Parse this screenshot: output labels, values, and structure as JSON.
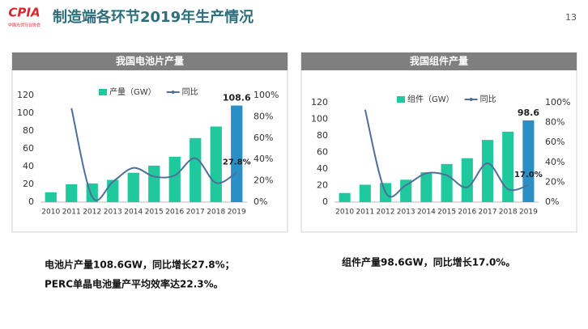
{
  "logo": {
    "text": "CPIA",
    "subtitle": "中国光伏行业协会"
  },
  "title": "制造端各环节2019年生产情况",
  "page_number": "13",
  "chart_data": [
    {
      "type": "bar",
      "title": "我国电池片产量",
      "categories": [
        "2010",
        "2011",
        "2012",
        "2013",
        "2014",
        "2015",
        "2016",
        "2017",
        "2018",
        "2019"
      ],
      "series": [
        {
          "name": "产量（GW）",
          "type": "bar",
          "colors": [
            "#20c99d",
            "#20c99d",
            "#20c99d",
            "#20c99d",
            "#20c99d",
            "#20c99d",
            "#20c99d",
            "#20c99d",
            "#20c99d",
            "#2a8fc4"
          ],
          "values": [
            11,
            20,
            21,
            25,
            33,
            41,
            51,
            72,
            85,
            108.6
          ]
        },
        {
          "name": "同比",
          "type": "line",
          "axis": "y2",
          "color": "#4f6f9a",
          "values": [
            null,
            88,
            5,
            19,
            32,
            24,
            25,
            41,
            18,
            27.8
          ],
          "value_labels": [
            null,
            null,
            null,
            null,
            null,
            null,
            null,
            null,
            null,
            "27.8%"
          ]
        }
      ],
      "ylim": [
        0,
        120
      ],
      "yticks": [
        0,
        20,
        40,
        60,
        80,
        100,
        120
      ],
      "y2lim": [
        0,
        100
      ],
      "y2ticks": [
        {
          "value": 0,
          "label": "0%"
        },
        {
          "value": 20,
          "label": "20%"
        },
        {
          "value": 40,
          "label": "40%"
        },
        {
          "value": 60,
          "label": "60%"
        },
        {
          "value": 80,
          "label": "80%"
        },
        {
          "value": 100,
          "label": "100%"
        }
      ]
    },
    {
      "type": "bar",
      "title": "我国组件产量",
      "categories": [
        "2010",
        "2011",
        "2012",
        "2013",
        "2014",
        "2015",
        "2016",
        "2017",
        "2018",
        "2019"
      ],
      "series": [
        {
          "name": "组件（GW）",
          "type": "bar",
          "colors": [
            "#20c99d",
            "#20c99d",
            "#20c99d",
            "#20c99d",
            "#20c99d",
            "#20c99d",
            "#20c99d",
            "#20c99d",
            "#20c99d",
            "#2a8fc4"
          ],
          "values": [
            11,
            21,
            23,
            27,
            36,
            46,
            53,
            75,
            85,
            98.6
          ]
        },
        {
          "name": "同比",
          "type": "line",
          "axis": "y2",
          "color": "#4f6f9a",
          "values": [
            null,
            93,
            10,
            17,
            29,
            27,
            15,
            39,
            13,
            17.0
          ],
          "value_labels": [
            null,
            null,
            null,
            null,
            null,
            null,
            null,
            null,
            null,
            "17.0%"
          ]
        }
      ],
      "ylim": [
        0,
        120
      ],
      "yticks": [
        0,
        20,
        40,
        60,
        80,
        100,
        120
      ],
      "y2lim": [
        0,
        100
      ],
      "y2ticks": [
        {
          "value": 0,
          "label": "0%"
        },
        {
          "value": 20,
          "label": "20%"
        },
        {
          "value": 40,
          "label": "40%"
        },
        {
          "value": 60,
          "label": "60%"
        },
        {
          "value": 80,
          "label": "80%"
        },
        {
          "value": 100,
          "label": "100%"
        }
      ]
    }
  ],
  "captions": [
    [
      "电池片产量108.6GW，同比增长27.8%；",
      "PERC单晶电池量产平均效率达22.3%。"
    ],
    [
      "组件产量98.6GW，同比增长17.0%。"
    ]
  ]
}
